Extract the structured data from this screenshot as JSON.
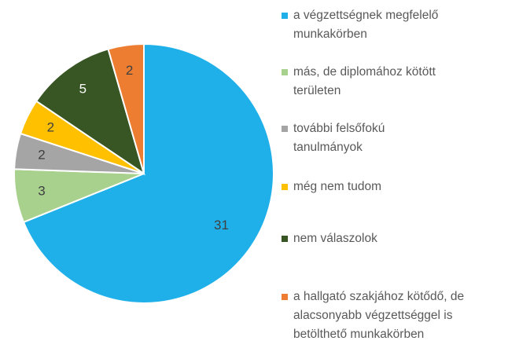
{
  "chart_data": {
    "type": "pie",
    "categories": [
      "a végzettségnek megfelelő munkakörben",
      "más, de diplomához kötött területen",
      "további felsőfokú tanulmányok",
      "még nem tudom",
      "nem válaszolok",
      "a hallgató szakjához kötődő, de alacsonyabb végzettséggel is betölthető munkakörben"
    ],
    "values": [
      31,
      3,
      2,
      2,
      5,
      2
    ],
    "colors": [
      "#1fb0ea",
      "#a9d18e",
      "#a5a5a5",
      "#ffc000",
      "#375623",
      "#ed7d31"
    ],
    "legend": "right"
  }
}
